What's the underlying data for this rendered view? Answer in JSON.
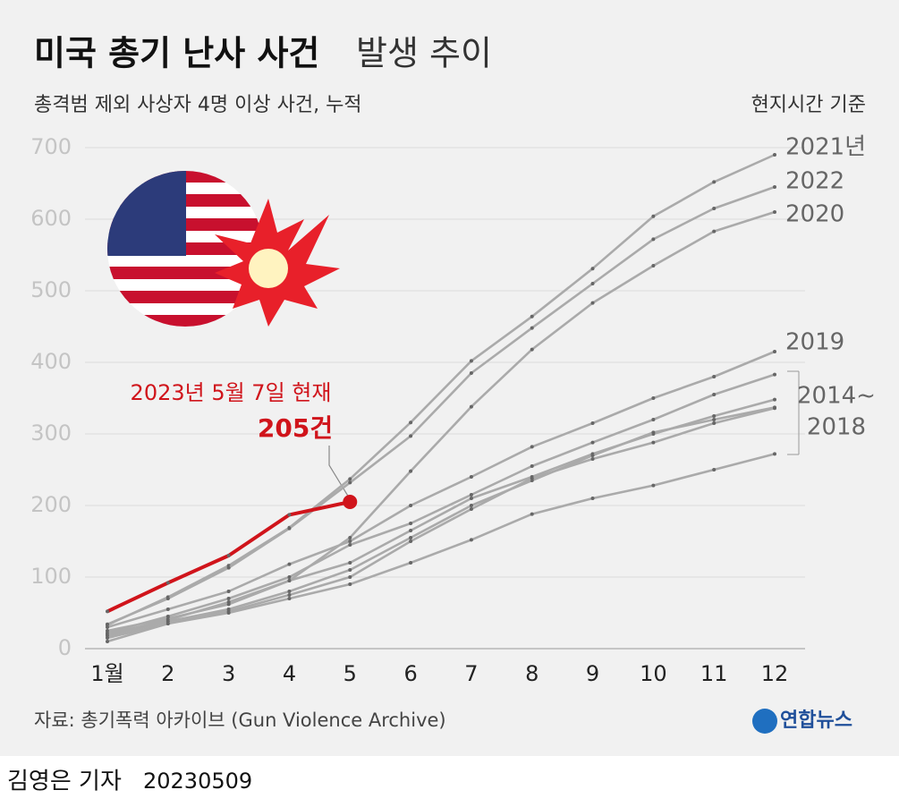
{
  "chart_data": {
    "type": "line",
    "title": "미국 총기 난사 사건",
    "title2": "발생 추이",
    "subtitle": "총격범 제외 사상자 4명 이상 사건, 누적",
    "note": "현지시간 기준",
    "categories": [
      "1월",
      "2",
      "3",
      "4",
      "5",
      "6",
      "7",
      "8",
      "9",
      "10",
      "11",
      "12"
    ],
    "ylim": [
      0,
      700
    ],
    "yticks": [
      0,
      100,
      200,
      300,
      400,
      500,
      600,
      700
    ],
    "grid": true,
    "series": [
      {
        "name": "2021년",
        "color": "#aaaaaa",
        "values": [
          33,
          72,
          116,
          169,
          237,
          316,
          402,
          464,
          531,
          604,
          652,
          690
        ]
      },
      {
        "name": "2022",
        "color": "#aaaaaa",
        "values": [
          34,
          70,
          113,
          168,
          232,
          297,
          385,
          448,
          510,
          572,
          615,
          645
        ]
      },
      {
        "name": "2020",
        "color": "#aaaaaa",
        "values": [
          25,
          42,
          62,
          95,
          155,
          248,
          338,
          418,
          483,
          535,
          583,
          610
        ]
      },
      {
        "name": "2019",
        "color": "#aaaaaa",
        "values": [
          30,
          55,
          80,
          118,
          150,
          200,
          240,
          282,
          315,
          350,
          380,
          415
        ]
      },
      {
        "color": "#aaaaaa",
        "values": [
          22,
          45,
          70,
          100,
          145,
          175,
          215,
          255,
          288,
          320,
          355,
          383
        ]
      },
      {
        "color": "#aaaaaa",
        "values": [
          20,
          40,
          65,
          95,
          120,
          165,
          210,
          240,
          272,
          300,
          325,
          348
        ]
      },
      {
        "color": "#aaaaaa",
        "values": [
          18,
          38,
          55,
          80,
          110,
          155,
          200,
          235,
          270,
          302,
          320,
          337
        ]
      },
      {
        "color": "#aaaaaa",
        "values": [
          15,
          35,
          52,
          75,
          100,
          150,
          195,
          238,
          265,
          288,
          315,
          336
        ]
      },
      {
        "color": "#aaaaaa",
        "values": [
          10,
          35,
          50,
          70,
          90,
          120,
          152,
          188,
          210,
          228,
          250,
          272
        ]
      },
      {
        "color": "#d0141b",
        "values": [
          52,
          92,
          130,
          187,
          205,
          null,
          null,
          null,
          null,
          null,
          null,
          null
        ],
        "value_labels": [
          null,
          null,
          null,
          null,
          "205건",
          null,
          null,
          null,
          null,
          null,
          null,
          null
        ]
      }
    ],
    "group_label": [
      "2014~",
      "2018"
    ],
    "annotation": "2023년 5월 7일 현재",
    "source": "자료: 총기폭력 아카이브 (Gun Violence Archive)",
    "logo": "연합뉴스",
    "byline": "김영은 기자",
    "date": "20230509"
  }
}
